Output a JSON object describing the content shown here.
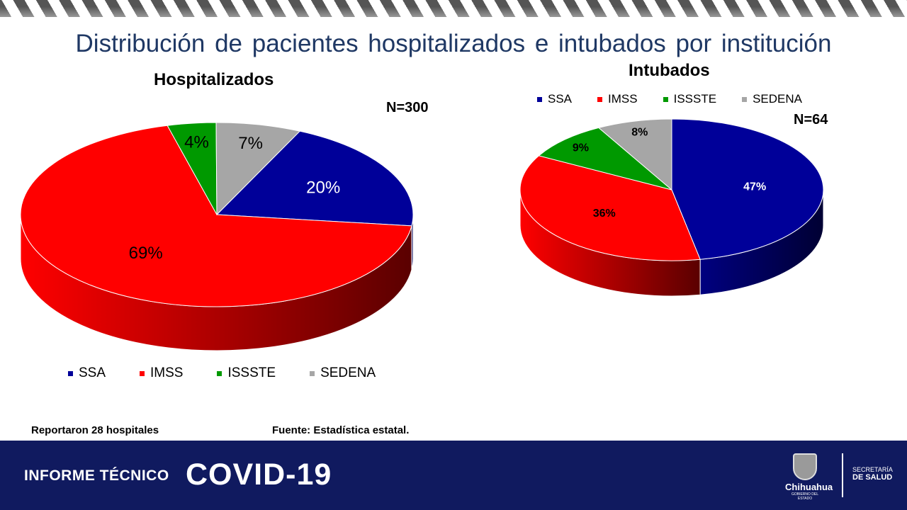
{
  "title": "Distribución de pacientes hospitalizados e intubados por institución",
  "colors": {
    "SSA": "#000099",
    "IMSS": "#ff0000",
    "ISSSTE": "#009900",
    "SEDENA": "#a6a6a6"
  },
  "chart_data": [
    {
      "type": "pie",
      "title": "Hospitalizados",
      "n_label": "N=300",
      "categories": [
        "SSA",
        "IMSS",
        "ISSSTE",
        "SEDENA"
      ],
      "values": [
        20,
        69,
        4,
        7
      ],
      "labels": [
        "20%",
        "69%",
        "4%",
        "7%"
      ],
      "legend_placement": "bottom",
      "three_d": true
    },
    {
      "type": "pie",
      "title": "Intubados",
      "n_label": "N=64",
      "categories": [
        "SSA",
        "IMSS",
        "ISSSTE",
        "SEDENA"
      ],
      "values": [
        47,
        36,
        9,
        8
      ],
      "labels": [
        "47%",
        "36%",
        "9%",
        "8%"
      ],
      "legend_placement": "top",
      "three_d": true
    }
  ],
  "notes": {
    "left": "Reportaron 28 hospitales",
    "right": "Fuente: Estadística estatal."
  },
  "footer": {
    "informe": "INFORME TÉCNICO",
    "covid": "COVID-19",
    "logo_city": "Chihuahua",
    "logo_sub": "GOBIERNO DEL ESTADO",
    "sec1": "SECRETARÍA",
    "sec2": "DE SALUD"
  }
}
